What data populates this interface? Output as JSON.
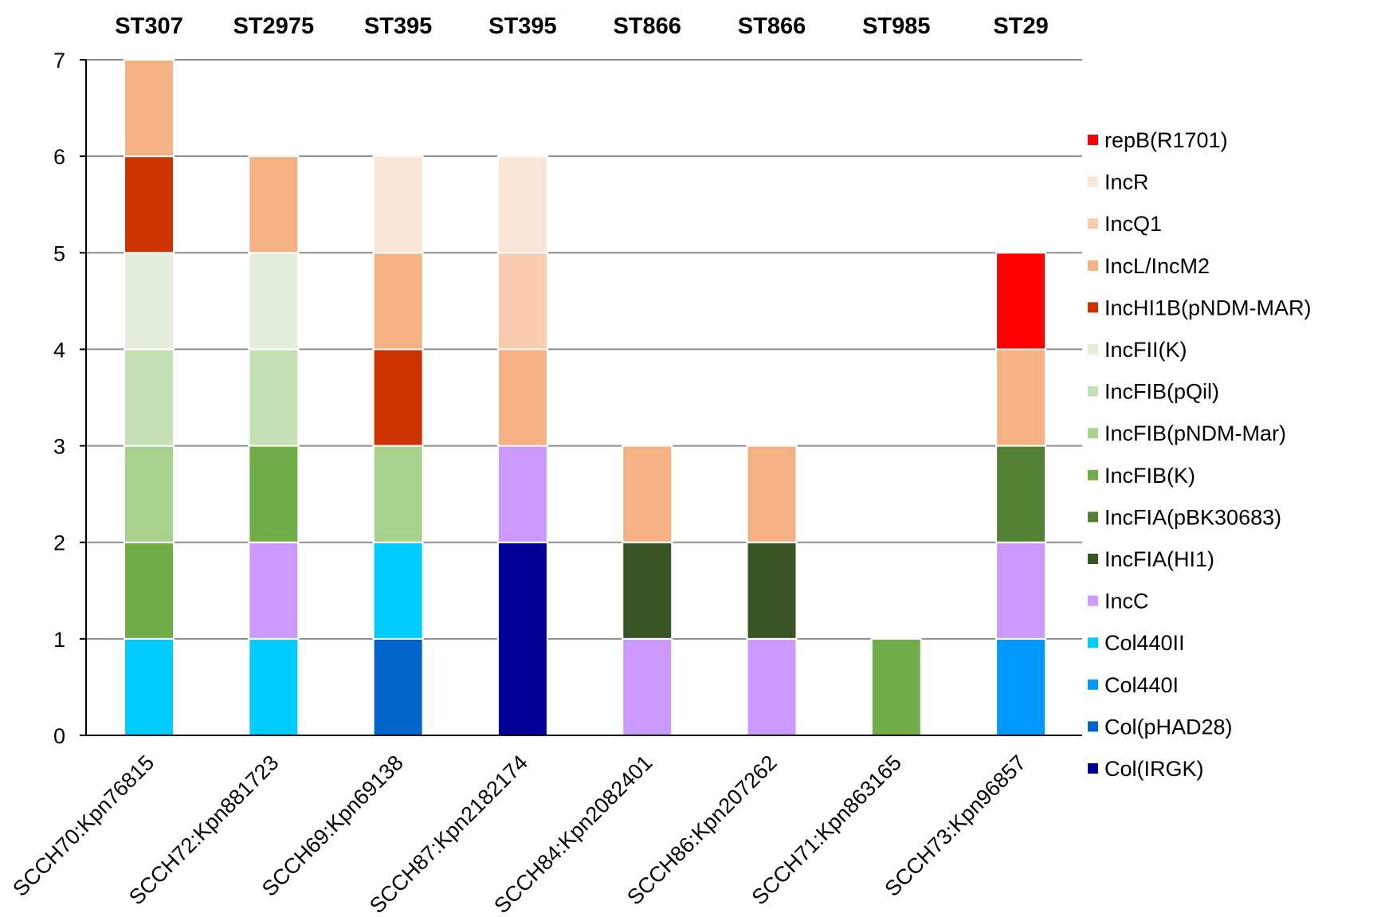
{
  "chart_data": {
    "type": "bar",
    "stacked": true,
    "title": "",
    "xlabel": "",
    "ylabel": "",
    "ylim": [
      0,
      7
    ],
    "yticks": [
      0,
      1,
      2,
      3,
      4,
      5,
      6,
      7
    ],
    "grid": true,
    "legend_position": "right",
    "categories": [
      "SCCH70:Kpn76815",
      "SCCH72:Kpn881723",
      "SCCH69:Kpn69138",
      "SCCH87:Kpn2182174",
      "SCCH84:Kpn2082401",
      "SCCH86:Kpn207262",
      "SCCH71:Kpn863165",
      "SCCH73:Kpn96857"
    ],
    "top_annotations": [
      "ST307",
      "ST2975",
      "ST395",
      "ST395",
      "ST866",
      "ST866",
      "ST985",
      "ST29"
    ],
    "series": [
      {
        "name": "Col(IRGK)",
        "color": "#000099",
        "values": [
          0,
          0,
          0,
          2,
          0,
          0,
          0,
          0
        ]
      },
      {
        "name": "Col(pHAD28)",
        "color": "#0066CC",
        "values": [
          0,
          0,
          1,
          0,
          0,
          0,
          0,
          0
        ]
      },
      {
        "name": "Col440I",
        "color": "#0099FF",
        "values": [
          0,
          0,
          0,
          0,
          0,
          0,
          0,
          1
        ]
      },
      {
        "name": "Col440II",
        "color": "#00CCFF",
        "values": [
          1,
          1,
          1,
          0,
          0,
          0,
          0,
          0
        ]
      },
      {
        "name": "IncC",
        "color": "#CC99FF",
        "values": [
          0,
          1,
          0,
          1,
          1,
          1,
          0,
          1
        ]
      },
      {
        "name": "IncFIA(HI1)",
        "color": "#375623",
        "values": [
          0,
          0,
          0,
          0,
          1,
          1,
          0,
          0
        ]
      },
      {
        "name": "IncFIA(pBK30683)",
        "color": "#548235",
        "values": [
          0,
          0,
          0,
          0,
          0,
          0,
          0,
          1
        ]
      },
      {
        "name": "IncFIB(K)",
        "color": "#70AD47",
        "values": [
          1,
          1,
          0,
          0,
          0,
          0,
          1,
          0
        ]
      },
      {
        "name": "IncFIB(pNDM-Mar)",
        "color": "#A9D18E",
        "values": [
          1,
          0,
          1,
          0,
          0,
          0,
          0,
          0
        ]
      },
      {
        "name": "IncFIB(pQil)",
        "color": "#C5E0B4",
        "values": [
          1,
          1,
          0,
          0,
          0,
          0,
          0,
          0
        ]
      },
      {
        "name": "IncFII(K)",
        "color": "#E2EFDA",
        "values": [
          1,
          1,
          0,
          0,
          0,
          0,
          0,
          0
        ]
      },
      {
        "name": "IncHI1B(pNDM-MAR)",
        "color": "#CC3300",
        "values": [
          1,
          0,
          1,
          0,
          0,
          0,
          0,
          0
        ]
      },
      {
        "name": "IncL/IncM2",
        "color": "#F4B183",
        "values": [
          1,
          1,
          1,
          1,
          1,
          1,
          0,
          1
        ]
      },
      {
        "name": "IncQ1",
        "color": "#F8CBAD",
        "values": [
          0,
          0,
          0,
          1,
          0,
          0,
          0,
          0
        ]
      },
      {
        "name": "IncR",
        "color": "#FBE5D6",
        "values": [
          0,
          0,
          1,
          1,
          0,
          0,
          0,
          0
        ]
      },
      {
        "name": "repB(R1701)",
        "color": "#FF0000",
        "values": [
          0,
          0,
          0,
          0,
          0,
          0,
          0,
          1
        ]
      }
    ],
    "legend_order": [
      "repB(R1701)",
      "IncR",
      "IncQ1",
      "IncL/IncM2",
      "IncHI1B(pNDM-MAR)",
      "IncFII(K)",
      "IncFIB(pQil)",
      "IncFIB(pNDM-Mar)",
      "IncFIB(K)",
      "IncFIA(pBK30683)",
      "IncFIA(HI1)",
      "IncC",
      "Col440II",
      "Col440I",
      "Col(pHAD28)",
      "Col(IRGK)"
    ],
    "totals": [
      7,
      6,
      6,
      6,
      3,
      3,
      1,
      5
    ]
  }
}
